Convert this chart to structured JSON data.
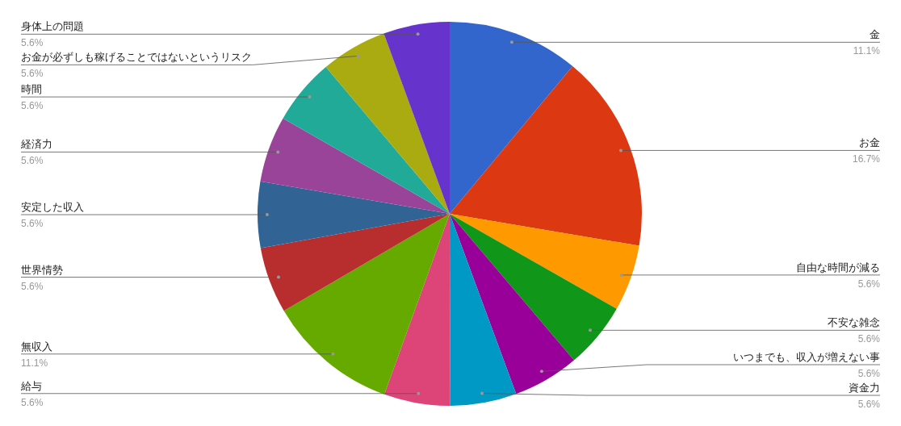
{
  "chart_data": {
    "type": "pie",
    "categories": [
      "金",
      "お金",
      "自由な時間が減る",
      "不安な雑念",
      "いつまでも、収入が増えない事",
      "資金力",
      "給与",
      "無収入",
      "世界情勢",
      "安定した収入",
      "経済力",
      "時間",
      "お金が必ずしも稼げることではないというリスク",
      "身体上の問題"
    ],
    "values": [
      11.1,
      16.7,
      5.6,
      5.6,
      5.6,
      5.6,
      5.6,
      11.1,
      5.6,
      5.6,
      5.6,
      5.6,
      5.6,
      5.6
    ],
    "colors": [
      "#3366cc",
      "#dc3912",
      "#ff9900",
      "#109618",
      "#990099",
      "#0099c6",
      "#dd4477",
      "#66aa00",
      "#b82e2e",
      "#316395",
      "#994499",
      "#22aa99",
      "#aaaa11",
      "#6633cc"
    ],
    "value_labels": [
      "11.1%",
      "16.7%",
      "5.6%",
      "5.6%",
      "5.6%",
      "5.6%",
      "5.6%",
      "11.1%",
      "5.6%",
      "5.6%",
      "5.6%",
      "5.6%",
      "5.6%",
      "5.6%"
    ]
  }
}
